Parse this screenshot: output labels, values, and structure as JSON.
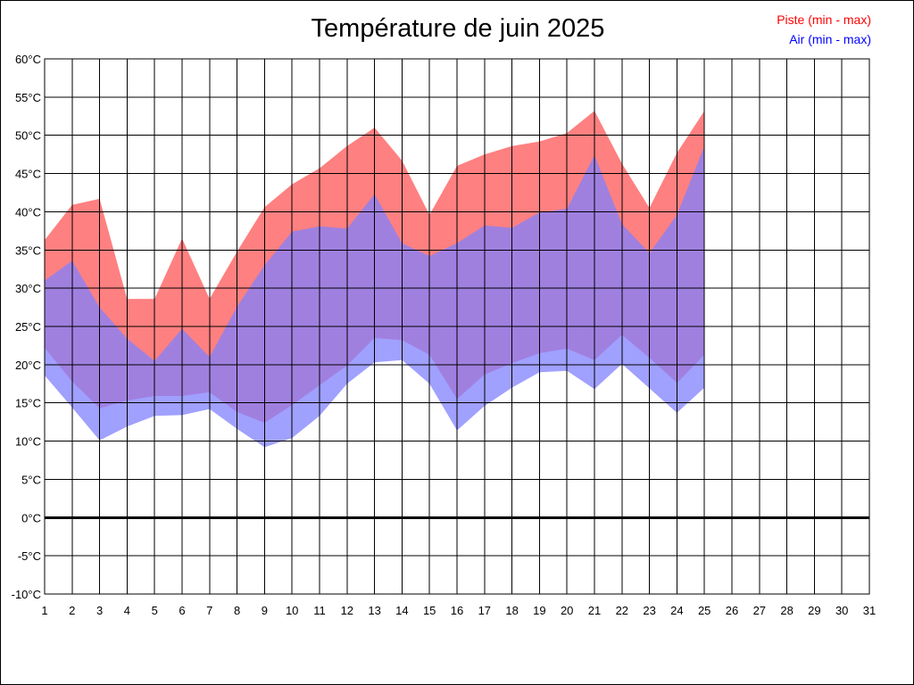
{
  "chart_data": {
    "type": "area",
    "title": "Température de juin 2025",
    "x": [
      1,
      2,
      3,
      4,
      5,
      6,
      7,
      8,
      9,
      10,
      11,
      12,
      13,
      14,
      15,
      16,
      17,
      18,
      19,
      20,
      21,
      22,
      23,
      24,
      25,
      26,
      27,
      28,
      29,
      30,
      31
    ],
    "xlim": [
      1,
      31
    ],
    "ylim": [
      -10,
      60
    ],
    "y_unit": "°C",
    "y_ticks": [
      "60°C",
      "55°C",
      "50°C",
      "45°C",
      "40°C",
      "35°C",
      "30°C",
      "25°C",
      "20°C",
      "15°C",
      "10°C",
      "5°C",
      "0°C",
      "-5°C",
      "-10°C"
    ],
    "x_ticks": [
      "1",
      "2",
      "3",
      "4",
      "5",
      "6",
      "7",
      "8",
      "9",
      "10",
      "11",
      "12",
      "13",
      "14",
      "15",
      "16",
      "17",
      "18",
      "19",
      "20",
      "21",
      "22",
      "23",
      "24",
      "25",
      "26",
      "27",
      "28",
      "29",
      "30",
      "31"
    ],
    "grid": true,
    "zero_line": true,
    "legend_placement": "top-right",
    "series": [
      {
        "name": "Piste (min - max)",
        "color": "#ff8080",
        "text_color": "#ff0000",
        "days": [
          1,
          2,
          3,
          4,
          5,
          6,
          7,
          8,
          9,
          10,
          11,
          12,
          13,
          14,
          15,
          16,
          17,
          18,
          19,
          20,
          21,
          22,
          23,
          24,
          25
        ],
        "min": [
          22.2,
          17.8,
          14.3,
          15.3,
          15.9,
          15.9,
          16.4,
          13.8,
          12.4,
          14.7,
          17.3,
          19.9,
          23.5,
          23.2,
          21.3,
          15.5,
          18.7,
          20.2,
          21.5,
          22.1,
          20.6,
          23.9,
          20.9,
          17.6,
          21.3
        ],
        "max": [
          36.3,
          40.9,
          41.7,
          28.6,
          28.6,
          36.5,
          28.6,
          34.8,
          40.6,
          43.6,
          45.7,
          48.6,
          51.0,
          46.7,
          39.6,
          46.0,
          47.5,
          48.6,
          49.2,
          50.3,
          53.2,
          46.3,
          40.5,
          47.7,
          53.2
        ]
      },
      {
        "name": "Air (min - max)",
        "color": "#8080ff",
        "text_color": "#0000ff",
        "days": [
          1,
          2,
          3,
          4,
          5,
          6,
          7,
          8,
          9,
          10,
          11,
          12,
          13,
          14,
          15,
          16,
          17,
          18,
          19,
          20,
          21,
          22,
          23,
          24,
          25
        ],
        "min": [
          18.6,
          14.4,
          10.1,
          11.9,
          13.3,
          13.4,
          14.2,
          11.6,
          9.2,
          10.4,
          13.3,
          17.5,
          20.3,
          20.6,
          17.5,
          11.4,
          14.6,
          17.0,
          19.0,
          19.2,
          16.8,
          20.1,
          16.9,
          13.7,
          17.0
        ],
        "max": [
          31.0,
          33.6,
          27.5,
          23.4,
          20.5,
          24.7,
          21.0,
          27.6,
          33.0,
          37.4,
          38.1,
          37.8,
          42.3,
          35.9,
          34.2,
          35.9,
          38.2,
          37.9,
          39.9,
          40.4,
          47.4,
          38.4,
          34.6,
          39.6,
          48.6
        ]
      }
    ]
  }
}
